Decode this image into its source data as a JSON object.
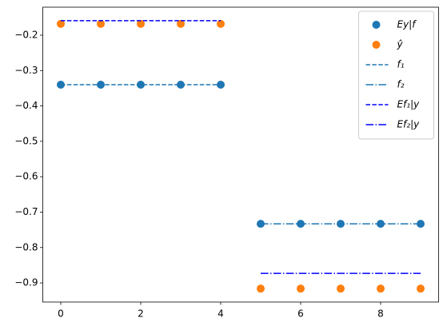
{
  "chart_data": {
    "type": "scatter",
    "xlim": [
      -0.45,
      9.45
    ],
    "ylim": [
      -0.954,
      -0.121
    ],
    "xticks": [
      0,
      2,
      4,
      6,
      8
    ],
    "yticks": [
      {
        "value": -0.9,
        "label": "−0.9"
      },
      {
        "value": -0.8,
        "label": "−0.8"
      },
      {
        "value": -0.7,
        "label": "−0.7"
      },
      {
        "value": -0.6,
        "label": "−0.6"
      },
      {
        "value": -0.5,
        "label": "−0.5"
      },
      {
        "value": -0.4,
        "label": "−0.4"
      },
      {
        "value": -0.3,
        "label": "−0.3"
      },
      {
        "value": -0.2,
        "label": "−0.2"
      }
    ],
    "legend": "upper right",
    "series": [
      {
        "name": "Ey|f",
        "color": "#1f77b4",
        "style": "marker",
        "x": [
          0,
          1,
          2,
          3,
          4,
          5,
          6,
          7,
          8,
          9
        ],
        "values": [
          -0.34,
          -0.34,
          -0.34,
          -0.34,
          -0.34,
          -0.733,
          -0.733,
          -0.733,
          -0.733,
          -0.733
        ]
      },
      {
        "name": "ŷ",
        "color": "#ff7f0e",
        "style": "marker",
        "x": [
          0,
          1,
          2,
          3,
          4,
          5,
          6,
          7,
          8,
          9
        ],
        "values": [
          -0.168,
          -0.168,
          -0.168,
          -0.168,
          -0.168,
          -0.916,
          -0.916,
          -0.916,
          -0.916,
          -0.916
        ]
      },
      {
        "name": "f₁",
        "color": "#1f77b4",
        "style": "dashed",
        "x": [
          0,
          1,
          2,
          3,
          4
        ],
        "values": [
          -0.34,
          -0.34,
          -0.34,
          -0.34,
          -0.34
        ]
      },
      {
        "name": "f₂",
        "color": "#1f77b4",
        "style": "dashdot",
        "x": [
          5,
          6,
          7,
          8,
          9
        ],
        "values": [
          -0.733,
          -0.733,
          -0.733,
          -0.733,
          -0.733
        ]
      },
      {
        "name": "Ef₁|y",
        "color": "#0000ff",
        "style": "dashed",
        "x": [
          0,
          1,
          2,
          3,
          4
        ],
        "values": [
          -0.159,
          -0.159,
          -0.159,
          -0.159,
          -0.159
        ]
      },
      {
        "name": "Ef₂|y",
        "color": "#0000ff",
        "style": "dashdot",
        "x": [
          5,
          6,
          7,
          8,
          9
        ],
        "values": [
          -0.873,
          -0.873,
          -0.873,
          -0.873,
          -0.873
        ]
      }
    ]
  }
}
